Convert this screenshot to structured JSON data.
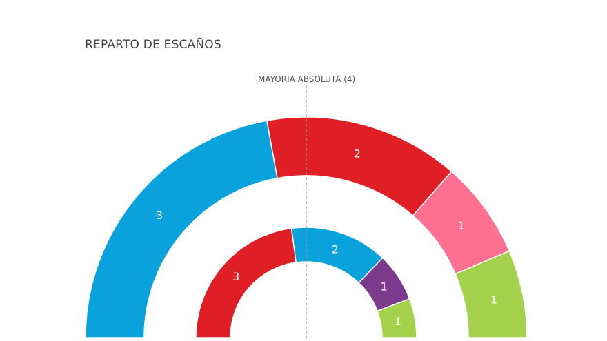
{
  "chart_data": {
    "type": "pie",
    "title": "REPARTO DE ESCAÑOS",
    "majority_label": "MAYORIA ABSOLUTA (4)",
    "rings": [
      {
        "ring": "outer",
        "slices": [
          {
            "value": 3,
            "color": "#0aa2dc"
          },
          {
            "value": 2,
            "color": "#df1e26"
          },
          {
            "value": 1,
            "color": "#ff6f8f"
          },
          {
            "value": 1,
            "color": "#a4d14b"
          }
        ]
      },
      {
        "ring": "inner",
        "slices": [
          {
            "value": 3,
            "color": "#df1e26"
          },
          {
            "value": 2,
            "color": "#0aa2dc"
          },
          {
            "value": 1,
            "color": "#7c3a8c"
          },
          {
            "value": 1,
            "color": "#a4d14b"
          }
        ]
      }
    ]
  }
}
